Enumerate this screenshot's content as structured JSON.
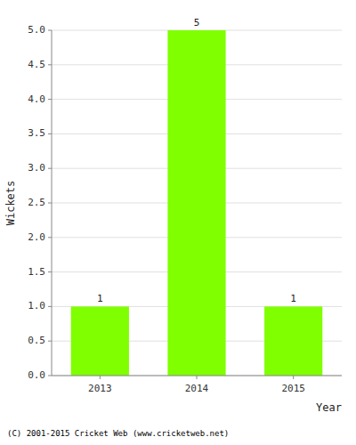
{
  "chart_data": {
    "type": "bar",
    "categories": [
      "2013",
      "2014",
      "2015"
    ],
    "values": [
      1,
      5,
      1
    ],
    "color": "#7FFF00",
    "xlabel": "Year",
    "ylabel": "Wickets",
    "ylim": [
      0,
      5.0
    ],
    "yticks": [
      {
        "value": 0.0,
        "label": "0.0"
      },
      0.5,
      {
        "value": 1.0,
        "label": "1.0"
      },
      1.5,
      {
        "value": 2.0,
        "label": "2.0"
      },
      2.5,
      {
        "value": 3.0,
        "label": "3.0"
      },
      3.5,
      {
        "value": 4.0,
        "label": "4.0"
      },
      4.5,
      {
        "value": 5.0,
        "label": "5.0"
      }
    ],
    "grid": true,
    "data_labels": true,
    "annotations": [
      "(C) 2001-2015 Cricket Web (www.cricketweb.net)"
    ]
  }
}
